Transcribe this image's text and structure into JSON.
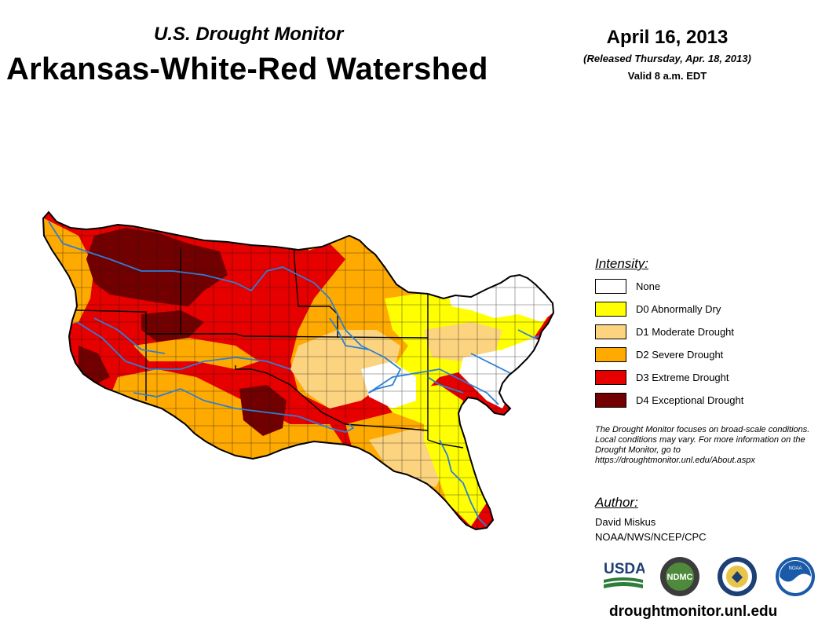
{
  "header": {
    "subtitle": "U.S. Drought Monitor",
    "title": "Arkansas-White-Red Watershed",
    "date": "April 16, 2013",
    "released": "(Released Thursday, Apr. 18, 2013)",
    "valid": "Valid 8 a.m. EDT"
  },
  "legend": {
    "title": "Intensity:",
    "items": [
      {
        "label": "None",
        "color": "#ffffff"
      },
      {
        "label": "D0 Abnormally Dry",
        "color": "#ffff00"
      },
      {
        "label": "D1 Moderate Drought",
        "color": "#fcd37f"
      },
      {
        "label": "D2 Severe Drought",
        "color": "#ffaa00"
      },
      {
        "label": "D3 Extreme Drought",
        "color": "#e60000"
      },
      {
        "label": "D4 Exceptional Drought",
        "color": "#730000"
      }
    ]
  },
  "note": "The Drought Monitor focuses on broad-scale conditions. Local conditions may vary. For more information on the Drought Monitor, go to https://droughtmonitor.unl.edu/About.aspx",
  "author": {
    "title": "Author:",
    "name": "David Miskus",
    "org": "NOAA/NWS/NCEP/CPC"
  },
  "logos": {
    "usda": "USDA",
    "ndmc": "NDMC",
    "noaa": "NOAA"
  },
  "website": "droughtmonitor.unl.edu"
}
